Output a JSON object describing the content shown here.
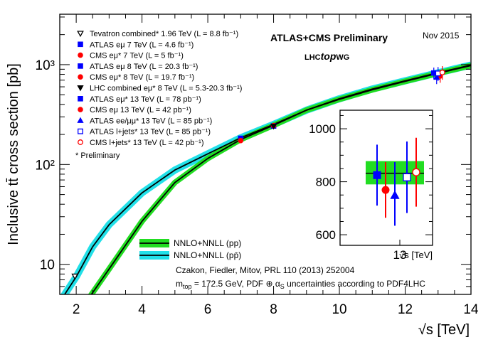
{
  "chart_data": {
    "type": "line",
    "title": "ATLAS+CMS Preliminary",
    "date": "Nov 2015",
    "group_label": {
      "pre": "LHC",
      "bold": "top",
      "post": "WG"
    },
    "xlabel": "√s [TeV]",
    "ylabel": "Inclusive tt̄ cross section [pb]",
    "xlim": [
      1.5,
      14
    ],
    "ylim": [
      5,
      3200
    ],
    "yscale": "log",
    "x_ticks": [
      2,
      4,
      6,
      8,
      10,
      12,
      14
    ],
    "y_ticks": [
      {
        "value": 10,
        "label": "10"
      },
      {
        "value": 100,
        "label": "10²"
      },
      {
        "value": 1000,
        "label": "10³"
      }
    ],
    "theory_curves": [
      {
        "name": "NNLO+NNLL (pp)",
        "band_color": "#22dd22",
        "line_color": "#000000",
        "x": [
          2.0,
          2.5,
          3.0,
          4.0,
          5.0,
          6.0,
          7.0,
          8.0,
          9.0,
          10.0,
          11.0,
          12.0,
          13.0,
          14.0
        ],
        "y": [
          3.0,
          5.2,
          9.0,
          27,
          66,
          115,
          178,
          247,
          350,
          450,
          560,
          680,
          820,
          980
        ]
      },
      {
        "name": "NNLO+NNLL (pp̄)",
        "band_color": "#22e0e8",
        "line_color": "#000000",
        "x": [
          1.5,
          2.0,
          2.5,
          3.0,
          4.0,
          5.0,
          6.0,
          7.0,
          8.0,
          9.0,
          10.0,
          11.0,
          12.0,
          13.0,
          14.0
        ],
        "y": [
          4.2,
          7.5,
          15,
          25,
          52,
          88,
          128,
          185,
          252,
          350,
          455,
          570,
          690,
          830,
          990
        ]
      }
    ],
    "measurements": [
      {
        "label": "Tevatron combined* 1.96 TeV (L = 8.8 fb⁻¹)",
        "marker": "triangle-down-open",
        "color": "#000000",
        "x": 1.96,
        "y": 7.6,
        "err": 0.4
      },
      {
        "label": "ATLAS eμ 7 TeV (L = 4.6 fb⁻¹)",
        "marker": "square",
        "color": "#0000ff",
        "x": 7.0,
        "y": 182.9,
        "err": 7.1
      },
      {
        "label": "CMS eμ* 7 TeV (L = 5 fb⁻¹)",
        "marker": "circle",
        "color": "#ff0000",
        "x": 7.0,
        "y": 173.6,
        "err": 6.5
      },
      {
        "label": "ATLAS eμ 8 TeV (L = 20.3 fb⁻¹)",
        "marker": "square",
        "color": "#0000ff",
        "x": 8.0,
        "y": 242.9,
        "err": 8.8
      },
      {
        "label": "CMS eμ* 8 TeV (L = 19.7 fb⁻¹)",
        "marker": "circle",
        "color": "#ff0000",
        "x": 8.0,
        "y": 244.9,
        "err": 8.9
      },
      {
        "label": "LHC combined eμ* 8 TeV (L = 5.3-20.3 fb⁻¹)",
        "marker": "triangle-down",
        "color": "#000000",
        "x": 8.0,
        "y": 241.5,
        "err": 8.5
      },
      {
        "label": "ATLAS eμ* 13 TeV (L = 78 pb⁻¹)",
        "marker": "square",
        "color": "#0000ff",
        "x": 13.0,
        "y": 825,
        "err": 110
      },
      {
        "label": "CMS eμ 13 TeV (L = 42 pb⁻¹)",
        "marker": "circle",
        "color": "#ff0000",
        "x": 13.0,
        "y": 769,
        "err": 110
      },
      {
        "label": "ATLAS ee/μμ* 13 TeV (L = 85 pb⁻¹)",
        "marker": "triangle-up",
        "color": "#0000ff",
        "x": 13.0,
        "y": 749,
        "err": 110
      },
      {
        "label": "ATLAS l+jets* 13 TeV (L = 85 pb⁻¹)",
        "marker": "square-open",
        "color": "#0000ff",
        "x": 13.0,
        "y": 817,
        "err": 130
      },
      {
        "label": "CMS l+jets* 13 TeV (L = 42 pb⁻¹)",
        "marker": "circle-open",
        "color": "#ff0000",
        "x": 13.0,
        "y": 836,
        "err": 130
      }
    ],
    "preliminary_note": "* Preliminary",
    "theory_reference": "Czakon, Fiedler, Mitov, PRL 110 (2013) 252004",
    "mtop_note": {
      "lead": "m",
      "sub_top": "top",
      "mid": " = 172.5 GeV, PDF ⊕ α",
      "sub_s": "S",
      "tail": " uncertainties according to PDF4LHC"
    },
    "inset": {
      "ylim": [
        560,
        1070
      ],
      "y_ticks": [
        600,
        800,
        1000
      ],
      "x_tick_label": "13",
      "xlabel": "√s [TeV]",
      "theory_band": {
        "central": 832,
        "low": 790,
        "high": 878,
        "color": "#22dd22"
      },
      "points": [
        {
          "label": "ATLAS eμ* 13 TeV",
          "marker": "square",
          "color": "#0000ff",
          "y": 825,
          "err_lo": 115,
          "err_hi": 115
        },
        {
          "label": "CMS eμ 13 TeV",
          "marker": "circle",
          "color": "#ff0000",
          "y": 769,
          "err_lo": 105,
          "err_hi": 105
        },
        {
          "label": "ATLAS ee/μμ* 13 TeV",
          "marker": "triangle-up",
          "color": "#0000ff",
          "y": 749,
          "err_lo": 115,
          "err_hi": 125
        },
        {
          "label": "ATLAS l+jets* 13 TeV",
          "marker": "square-open",
          "color": "#0000ff",
          "y": 817,
          "err_lo": 135,
          "err_hi": 135
        },
        {
          "label": "CMS l+jets* 13 TeV",
          "marker": "circle-open",
          "color": "#ff0000",
          "y": 836,
          "err_lo": 130,
          "err_hi": 130
        }
      ]
    }
  }
}
